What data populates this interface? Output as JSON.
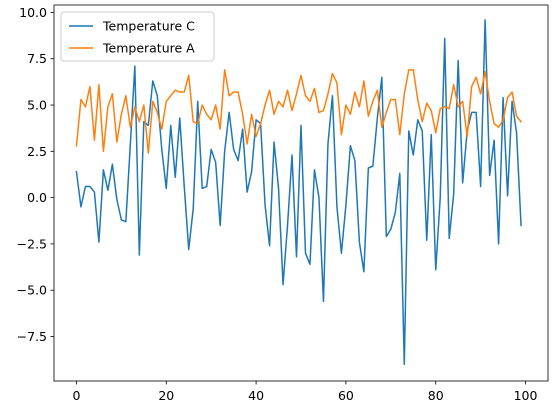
{
  "chart_data": {
    "type": "line",
    "title": "",
    "xlabel": "",
    "ylabel": "",
    "xlim": [
      -5,
      105
    ],
    "ylim": [
      -9.9,
      10.4
    ],
    "x_ticks": [
      0,
      20,
      40,
      60,
      80,
      100
    ],
    "y_ticks": [
      -7.5,
      -5.0,
      -2.5,
      0.0,
      2.5,
      5.0,
      7.5,
      10.0
    ],
    "x_tick_labels": [
      "0",
      "20",
      "40",
      "60",
      "80",
      "100"
    ],
    "y_tick_labels": [
      "−7.5",
      "−5.0",
      "−2.5",
      "0.0",
      "2.5",
      "5.0",
      "7.5",
      "10.0"
    ],
    "grid": false,
    "legend_position": "upper-left",
    "x": [
      0,
      1,
      2,
      3,
      4,
      5,
      6,
      7,
      8,
      9,
      10,
      11,
      12,
      13,
      14,
      15,
      16,
      17,
      18,
      19,
      20,
      21,
      22,
      23,
      24,
      25,
      26,
      27,
      28,
      29,
      30,
      31,
      32,
      33,
      34,
      35,
      36,
      37,
      38,
      39,
      40,
      41,
      42,
      43,
      44,
      45,
      46,
      47,
      48,
      49,
      50,
      51,
      52,
      53,
      54,
      55,
      56,
      57,
      58,
      59,
      60,
      61,
      62,
      63,
      64,
      65,
      66,
      67,
      68,
      69,
      70,
      71,
      72,
      73,
      74,
      75,
      76,
      77,
      78,
      79,
      80,
      81,
      82,
      83,
      84,
      85,
      86,
      87,
      88,
      89,
      90,
      91,
      92,
      93,
      94,
      95,
      96,
      97,
      98,
      99
    ],
    "series": [
      {
        "name": "Temperature C",
        "color": "#1f77b4",
        "values": [
          1.4,
          -0.5,
          0.6,
          0.6,
          0.3,
          -2.4,
          1.5,
          0.4,
          1.8,
          -0.1,
          -1.2,
          -1.3,
          2.9,
          7.1,
          -3.1,
          4.1,
          3.9,
          6.3,
          5.5,
          2.6,
          0.5,
          3.9,
          1.1,
          4.3,
          0.6,
          -2.8,
          -0.6,
          5.2,
          0.5,
          0.6,
          2.6,
          1.9,
          -1.5,
          2.5,
          4.6,
          2.6,
          2.0,
          3.7,
          0.3,
          1.4,
          4.2,
          4.0,
          -0.4,
          -2.6,
          3.0,
          0.5,
          -4.7,
          -1.5,
          2.3,
          -3.2,
          3.9,
          -3.0,
          -3.6,
          1.5,
          0.0,
          -5.6,
          2.9,
          5.5,
          -0.5,
          -3.0,
          -0.4,
          2.8,
          2.0,
          -2.4,
          -4.0,
          1.6,
          1.7,
          4.3,
          6.5,
          -2.1,
          -1.7,
          -0.8,
          1.3,
          -9.0,
          3.6,
          2.3,
          4.2,
          3.6,
          -2.3,
          3.4,
          -3.9,
          0.0,
          8.6,
          -2.2,
          0.2,
          7.4,
          0.8,
          3.6,
          4.6,
          4.6,
          0.6,
          9.6,
          1.2,
          3.1,
          -2.5,
          5.4,
          0.1,
          5.2,
          3.5,
          -1.5
        ]
      },
      {
        "name": "Temperature A",
        "color": "#ff7f0e",
        "values": [
          2.8,
          5.3,
          4.9,
          6.0,
          3.1,
          6.1,
          2.5,
          4.9,
          5.6,
          3.0,
          4.5,
          5.5,
          3.8,
          4.9,
          4.1,
          5.0,
          2.4,
          5.2,
          4.6,
          3.7,
          5.2,
          5.5,
          5.8,
          5.7,
          5.7,
          6.6,
          4.1,
          4.0,
          5.0,
          4.5,
          4.2,
          5.0,
          3.7,
          6.9,
          5.5,
          5.7,
          5.7,
          4.5,
          2.9,
          4.5,
          3.3,
          4.0,
          5.0,
          5.8,
          4.5,
          5.2,
          4.9,
          5.8,
          4.7,
          5.6,
          6.6,
          5.5,
          5.2,
          5.9,
          4.6,
          4.7,
          5.6,
          6.7,
          6.2,
          3.4,
          5.0,
          4.5,
          5.7,
          4.9,
          6.3,
          4.4,
          5.2,
          5.8,
          3.8,
          4.6,
          5.3,
          5.3,
          3.4,
          5.6,
          6.9,
          6.9,
          5.3,
          4.1,
          5.1,
          4.7,
          3.5,
          4.8,
          4.9,
          4.8,
          6.1,
          4.9,
          5.2,
          3.3,
          6.0,
          6.5,
          5.6,
          6.8,
          5.2,
          4.0,
          3.8,
          4.2,
          5.4,
          5.7,
          4.4,
          4.1
        ]
      }
    ]
  }
}
